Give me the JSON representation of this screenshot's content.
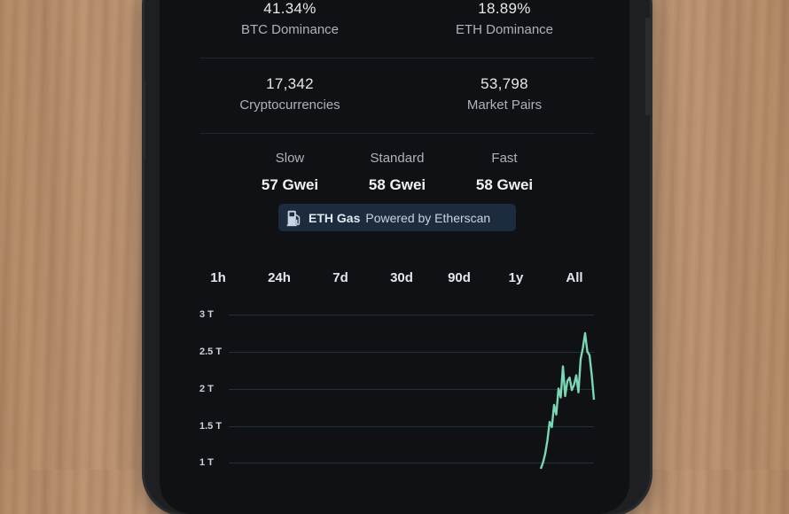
{
  "market_stats": [
    {
      "value": "41.34%",
      "label": "BTC Dominance"
    },
    {
      "value": "18.89%",
      "label": "ETH Dominance"
    },
    {
      "value": "17,342",
      "label": "Cryptocurrencies"
    },
    {
      "value": "53,798",
      "label": "Market Pairs"
    }
  ],
  "gas": [
    {
      "label": "Slow",
      "value": "57 Gwei"
    },
    {
      "label": "Standard",
      "value": "58 Gwei"
    },
    {
      "label": "Fast",
      "value": "58 Gwei"
    }
  ],
  "gas_badge": {
    "title": "ETH Gas",
    "subtitle": "Powered by Etherscan",
    "icon": "gas-pump-icon"
  },
  "time_tabs": [
    "1h",
    "24h",
    "7d",
    "30d",
    "90d",
    "1y",
    "All"
  ],
  "colors": {
    "line": "#7ad6b4",
    "background": "#0f1114",
    "badge": "#1c2b3d"
  },
  "chart_data": {
    "type": "line",
    "y_ticks": [
      "3 T",
      "2.5 T",
      "2 T",
      "1.5 T",
      "1 T"
    ],
    "ylim": [
      1,
      3
    ],
    "grid": true,
    "series": [
      {
        "values": [
          0.9,
          1.0,
          1.12,
          1.3,
          1.55,
          1.48,
          1.78,
          1.65,
          2.0,
          1.88,
          2.3,
          1.9,
          2.1,
          2.15,
          1.98,
          2.05,
          2.18,
          1.95,
          2.4,
          2.55,
          2.75,
          2.5,
          2.45,
          2.18,
          1.85
        ]
      }
    ]
  }
}
